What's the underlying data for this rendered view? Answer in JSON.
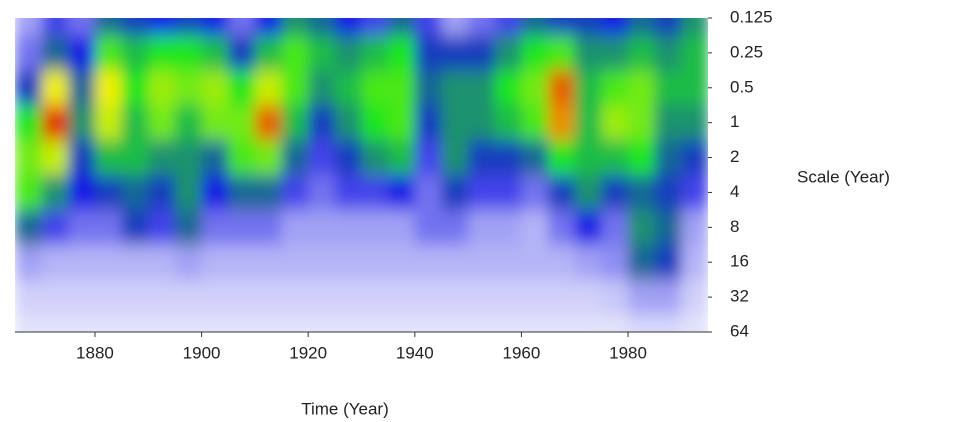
{
  "chart_data": {
    "type": "heatmap",
    "x_label": "Time (Year)",
    "y_label": "Scale (Year)",
    "x": [
      1867.5,
      1872.5,
      1877.5,
      1882.5,
      1887.5,
      1892.5,
      1897.5,
      1902.5,
      1907.5,
      1912.5,
      1917.5,
      1922.5,
      1927.5,
      1932.5,
      1937.5,
      1942.5,
      1947.5,
      1952.5,
      1957.5,
      1962.5,
      1967.5,
      1972.5,
      1977.5,
      1982.5,
      1987.5,
      1992.5
    ],
    "y": [
      0.125,
      0.25,
      0.5,
      1,
      2,
      4,
      8,
      16,
      32,
      64
    ],
    "z": [
      [
        0.1,
        0.2,
        0.15,
        0.35,
        0.3,
        0.25,
        0.3,
        0.25,
        0.15,
        0.25,
        0.4,
        0.35,
        0.25,
        0.2,
        0.35,
        0.2,
        0.1,
        0.15,
        0.2,
        0.35,
        0.3,
        0.3,
        0.25,
        0.35,
        0.3,
        0.4
      ],
      [
        0.15,
        0.35,
        0.25,
        0.55,
        0.45,
        0.5,
        0.5,
        0.45,
        0.3,
        0.45,
        0.55,
        0.45,
        0.4,
        0.45,
        0.5,
        0.3,
        0.3,
        0.3,
        0.4,
        0.5,
        0.55,
        0.4,
        0.4,
        0.45,
        0.4,
        0.45
      ],
      [
        0.3,
        0.75,
        0.35,
        0.75,
        0.5,
        0.65,
        0.6,
        0.65,
        0.5,
        0.7,
        0.55,
        0.4,
        0.45,
        0.55,
        0.55,
        0.35,
        0.4,
        0.4,
        0.5,
        0.6,
        0.9,
        0.45,
        0.55,
        0.6,
        0.45,
        0.45
      ],
      [
        0.5,
        0.95,
        0.4,
        0.7,
        0.45,
        0.6,
        0.45,
        0.6,
        0.6,
        0.9,
        0.45,
        0.3,
        0.4,
        0.5,
        0.55,
        0.3,
        0.4,
        0.4,
        0.45,
        0.55,
        0.85,
        0.45,
        0.65,
        0.6,
        0.4,
        0.4
      ],
      [
        0.6,
        0.7,
        0.3,
        0.45,
        0.45,
        0.4,
        0.4,
        0.35,
        0.55,
        0.6,
        0.35,
        0.2,
        0.3,
        0.4,
        0.45,
        0.2,
        0.4,
        0.3,
        0.3,
        0.35,
        0.5,
        0.45,
        0.45,
        0.5,
        0.35,
        0.3
      ],
      [
        0.55,
        0.4,
        0.25,
        0.3,
        0.35,
        0.3,
        0.4,
        0.25,
        0.35,
        0.35,
        0.2,
        0.15,
        0.2,
        0.2,
        0.25,
        0.15,
        0.3,
        0.2,
        0.2,
        0.15,
        0.3,
        0.4,
        0.3,
        0.35,
        0.3,
        0.2
      ],
      [
        0.35,
        0.2,
        0.15,
        0.15,
        0.3,
        0.2,
        0.35,
        0.15,
        0.15,
        0.15,
        0.1,
        0.1,
        0.1,
        0.1,
        0.1,
        0.15,
        0.15,
        0.1,
        0.1,
        0.08,
        0.15,
        0.25,
        0.15,
        0.4,
        0.35,
        0.1
      ],
      [
        0.1,
        0.08,
        0.08,
        0.08,
        0.08,
        0.08,
        0.1,
        0.08,
        0.08,
        0.08,
        0.08,
        0.08,
        0.08,
        0.08,
        0.08,
        0.08,
        0.08,
        0.08,
        0.08,
        0.08,
        0.08,
        0.1,
        0.12,
        0.35,
        0.3,
        0.08
      ],
      [
        0.05,
        0.05,
        0.05,
        0.05,
        0.05,
        0.05,
        0.05,
        0.05,
        0.05,
        0.05,
        0.05,
        0.05,
        0.05,
        0.05,
        0.05,
        0.05,
        0.05,
        0.05,
        0.05,
        0.05,
        0.05,
        0.05,
        0.06,
        0.1,
        0.1,
        0.05
      ],
      [
        0.03,
        0.03,
        0.03,
        0.03,
        0.03,
        0.03,
        0.03,
        0.03,
        0.03,
        0.03,
        0.03,
        0.03,
        0.03,
        0.03,
        0.03,
        0.03,
        0.03,
        0.03,
        0.03,
        0.03,
        0.03,
        0.03,
        0.03,
        0.04,
        0.04,
        0.03
      ]
    ],
    "colormap": [
      "#ffffff",
      "#1414e6",
      "#1ee61e",
      "#f0f000",
      "#e00000"
    ],
    "xlim": [
      1865,
      1995
    ],
    "xticks": [
      1880,
      1900,
      1920,
      1940,
      1960,
      1980
    ],
    "ylim": [
      0.125,
      64
    ],
    "yticks": [
      0.125,
      0.25,
      0.5,
      1,
      2,
      4,
      8,
      16,
      32,
      64
    ],
    "y_log": true,
    "y_reversed": true,
    "y_axis_side": "right"
  }
}
